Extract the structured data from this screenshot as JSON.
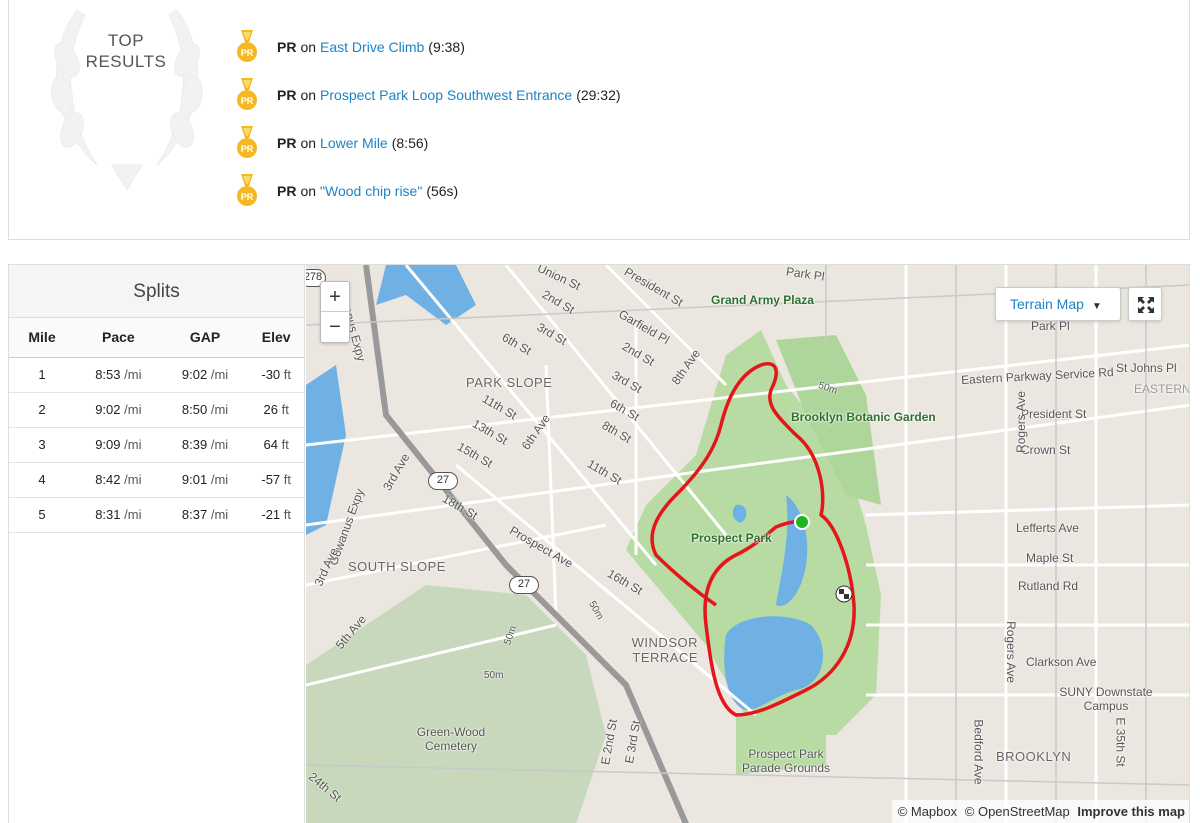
{
  "top_results": {
    "title_line1": "TOP",
    "title_line2": "RESULTS",
    "items": [
      {
        "badge": "PR",
        "on": "on",
        "segment": "East Drive Climb",
        "time": "(9:38)"
      },
      {
        "badge": "PR",
        "on": "on",
        "segment": "Prospect Park Loop Southwest Entrance",
        "time": "(29:32)"
      },
      {
        "badge": "PR",
        "on": "on",
        "segment": "Lower Mile",
        "time": "(8:56)"
      },
      {
        "badge": "PR",
        "on": "on",
        "segment": "\"Wood chip rise\"",
        "time": "(56s)"
      }
    ],
    "medal_color": "#f5b821",
    "link_color": "#1a84c6"
  },
  "splits": {
    "title": "Splits",
    "headers": [
      "Mile",
      "Pace",
      "GAP",
      "Elev"
    ],
    "rows": [
      {
        "mile": "1",
        "pace": "8:53",
        "pace_unit": "/mi",
        "gap": "9:02",
        "gap_unit": "/mi",
        "elev": "-30",
        "elev_unit": "ft"
      },
      {
        "mile": "2",
        "pace": "9:02",
        "pace_unit": "/mi",
        "gap": "8:50",
        "gap_unit": "/mi",
        "elev": "26",
        "elev_unit": "ft"
      },
      {
        "mile": "3",
        "pace": "9:09",
        "pace_unit": "/mi",
        "gap": "8:39",
        "gap_unit": "/mi",
        "elev": "64",
        "elev_unit": "ft"
      },
      {
        "mile": "4",
        "pace": "8:42",
        "pace_unit": "/mi",
        "gap": "9:01",
        "gap_unit": "/mi",
        "elev": "-57",
        "elev_unit": "ft"
      },
      {
        "mile": "5",
        "pace": "8:31",
        "pace_unit": "/mi",
        "gap": "8:37",
        "gap_unit": "/mi",
        "elev": "-21",
        "elev_unit": "ft"
      }
    ]
  },
  "map": {
    "zoom_in": "+",
    "zoom_out": "−",
    "map_type": "Terrain Map",
    "attribution_mapbox": "© Mapbox",
    "attribution_osm": "© OpenStreetMap",
    "improve": "Improve this map",
    "route_color": "#e5161b",
    "start_color": "#1fb51f",
    "labels": {
      "grand_army": "Grand Army Plaza",
      "botanic": "Brooklyn Botanic Garden",
      "prospect_park": "Prospect Park",
      "park_slope": "PARK SLOPE",
      "south_slope": "SOUTH SLOPE",
      "windsor": "WINDSOR TERRACE",
      "greenwood": "Green-Wood Cemetery",
      "parade": "Prospect Park Parade Grounds",
      "brooklyn": "BROOKLYN",
      "suny": "SUNY Downstate Campus",
      "park_pl": "Park Pl",
      "park_pl2": "Park Pl",
      "st_johns": "St Johns Pl",
      "eastern_pkwy": "Eastern Parkway Service Rd",
      "eastern_park": "EASTERN PARKWAY",
      "president": "President St",
      "president2": "President St",
      "crown": "Crown St",
      "lefferts": "Lefferts Ave",
      "maple": "Maple St",
      "rutland": "Rutland Rd",
      "clarkson": "Clarkson Ave",
      "rogers": "Rogers Ave",
      "rogers2": "Rogers Ave",
      "bedford": "Bedford Ave",
      "e35": "E 35th St",
      "prospect_ave": "Prospect Ave",
      "ave3": "3rd Ave",
      "ave5": "5th Ave",
      "ave6": "6th Ave",
      "ave8": "8th Ave",
      "ave3rd": "3rd Ave",
      "st2": "2nd St",
      "st3": "3rd St",
      "st6": "6th St",
      "st11": "11th St",
      "st13": "13th St",
      "st15": "15th St",
      "st16": "16th St",
      "st18": "18th St",
      "garfield": "Garfield Pl",
      "st2b": "2nd St",
      "st3b": "3rd St",
      "st6b": "6th St",
      "st8": "8th St",
      "st11b": "11th St",
      "president_w": "President St",
      "e2": "E 2nd St",
      "e3": "E 3rd St",
      "gowanus": "Gowanus Expy",
      "expy": "Gowanus Expy",
      "park_pl_top": "Park Pl",
      "m50a": "50m",
      "m50b": "50m",
      "m50c": "50m",
      "m50d": "50m",
      "route27": "27",
      "route27b": "27",
      "route278": "278",
      "st_top": "Union St",
      "st_sw": "24th St"
    }
  }
}
